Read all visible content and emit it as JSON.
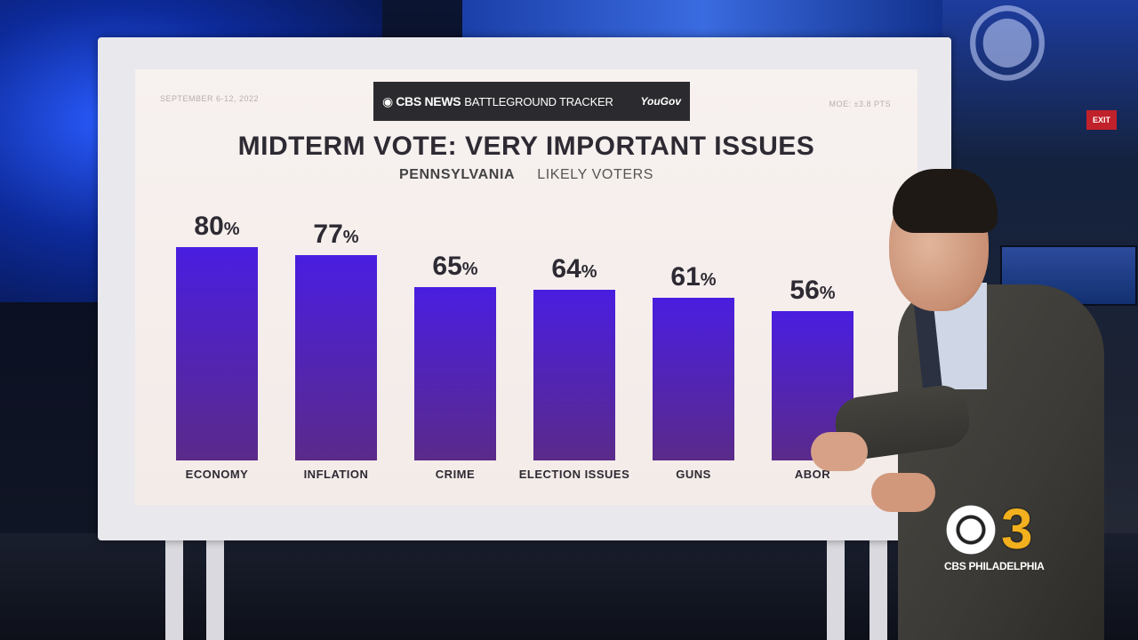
{
  "board": {
    "date_text": "SEPTEMBER 6-12, 2022",
    "moe_text": "MOE: ±3.8 PTS",
    "banner": {
      "brand": "CBS NEWS",
      "tracker": "BATTLEGROUND TRACKER",
      "partner": "YouGov"
    },
    "title": "MIDTERM VOTE: VERY IMPORTANT ISSUES",
    "subtitle_state": "PENNSYLVANIA",
    "subtitle_group": "LIKELY VOTERS"
  },
  "chart_data": {
    "type": "bar",
    "title": "MIDTERM VOTE: VERY IMPORTANT ISSUES",
    "subtitle": "PENNSYLVANIA LIKELY VOTERS",
    "categories": [
      "ECONOMY",
      "INFLATION",
      "CRIME",
      "ELECTION ISSUES",
      "GUNS",
      "ABORTION"
    ],
    "visible_labels": [
      "ECONOMY",
      "INFLATION",
      "CRIME",
      "ELECTION ISSUES",
      "GUNS",
      "ABOR"
    ],
    "values": [
      80,
      77,
      65,
      64,
      61,
      56
    ],
    "value_suffix": "%",
    "ylim": [
      0,
      100
    ],
    "grid": false,
    "bar_color_top": "#4a1ee0",
    "bar_color_bottom": "#5a2a8a"
  },
  "station": {
    "number": "3",
    "name": "CBS PHILADELPHIA"
  },
  "colors": {
    "board_background": "#f5eeeb",
    "banner_background": "#2b2b2f",
    "logo_number": "#f2b01e"
  }
}
